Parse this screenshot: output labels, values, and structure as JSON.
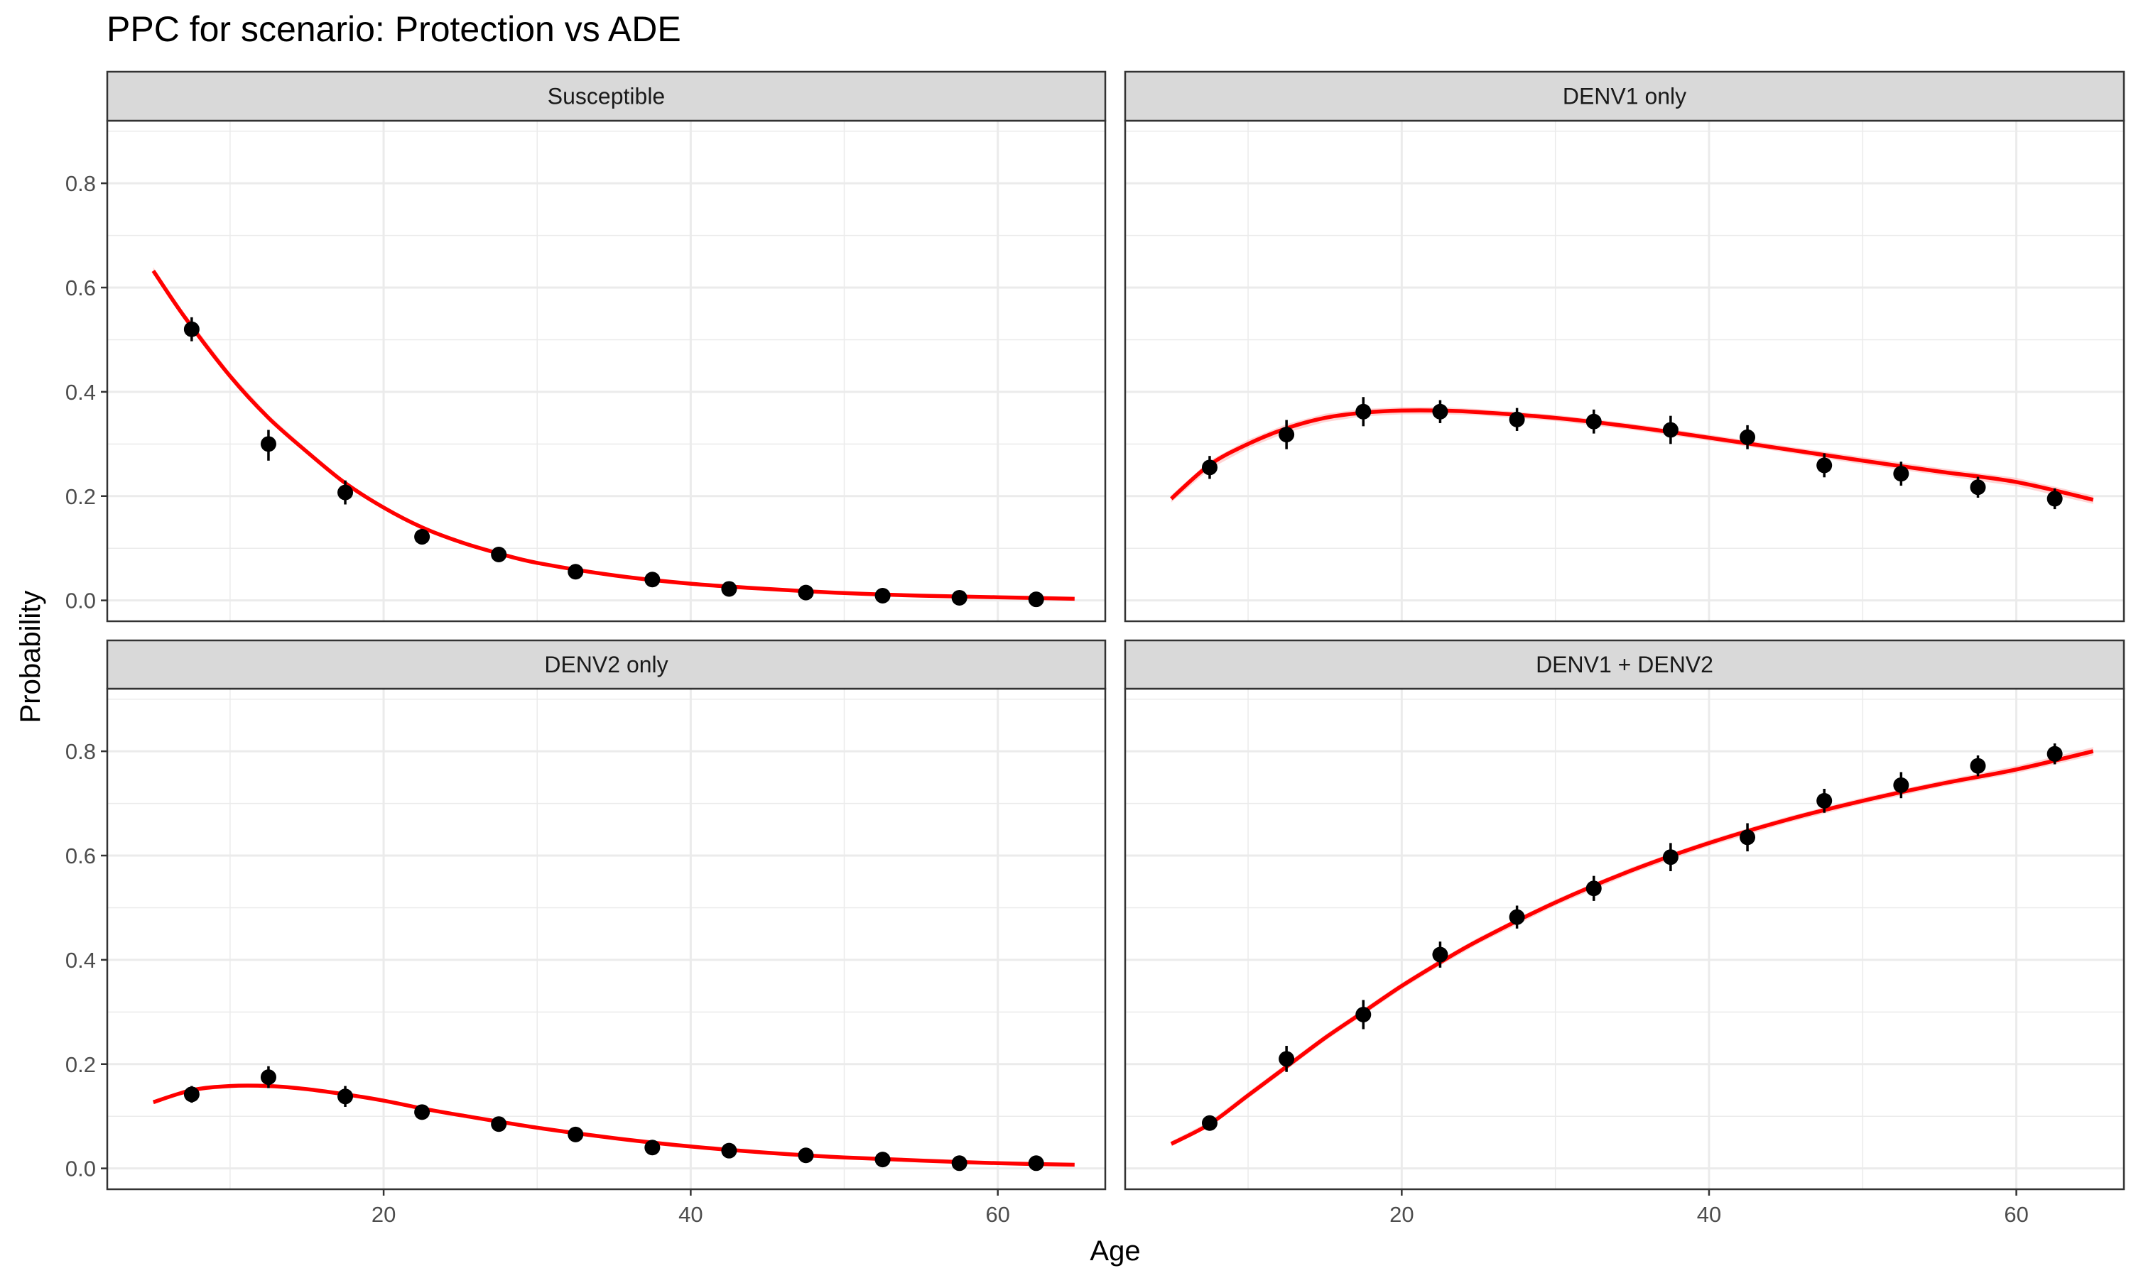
{
  "title": "PPC for scenario: Protection vs ADE",
  "colors": {
    "fit_line": "#ff0000",
    "ribbon": "#ffb3b3",
    "points": "#000000",
    "strip_bg": "#d9d9d9",
    "grid": "#ebebeb"
  },
  "chart_data": {
    "type": "scatter",
    "layout": "facet-grid 2x2",
    "xlabel": "Age",
    "ylabel": "Probability",
    "xlim": [
      2,
      67
    ],
    "ylim": [
      -0.04,
      0.92
    ],
    "x_ticks": [
      20,
      40,
      60
    ],
    "y_ticks": [
      0.0,
      0.2,
      0.4,
      0.6,
      0.8
    ],
    "x_tick_labels": [
      "20",
      "40",
      "60"
    ],
    "y_tick_labels": [
      "0.0",
      "0.2",
      "0.4",
      "0.6",
      "0.8"
    ],
    "grid": true,
    "panels": [
      {
        "label": "Susceptible",
        "observed": {
          "x": [
            7.5,
            12.5,
            17.5,
            22.5,
            27.5,
            32.5,
            37.5,
            42.5,
            47.5,
            52.5,
            57.5,
            62.5
          ],
          "y": [
            0.52,
            0.3,
            0.207,
            0.122,
            0.088,
            0.055,
            0.04,
            0.022,
            0.015,
            0.009,
            0.005,
            0.002
          ],
          "lower": [
            0.497,
            0.268,
            0.184,
            0.107,
            0.079,
            0.049,
            0.033,
            0.017,
            0.011,
            0.006,
            0.003,
            0.0
          ],
          "upper": [
            0.543,
            0.327,
            0.23,
            0.137,
            0.097,
            0.061,
            0.047,
            0.027,
            0.019,
            0.012,
            0.007,
            0.004
          ]
        },
        "fit": {
          "x": [
            5,
            7,
            10,
            12.5,
            15,
            17.5,
            20,
            22.5,
            25,
            27.5,
            30,
            35,
            40,
            45,
            50,
            55,
            60,
            65
          ],
          "y": [
            0.632,
            0.545,
            0.43,
            0.35,
            0.285,
            0.225,
            0.178,
            0.14,
            0.112,
            0.09,
            0.072,
            0.048,
            0.032,
            0.022,
            0.014,
            0.009,
            0.006,
            0.003
          ],
          "lower": [
            0.625,
            0.538,
            0.424,
            0.344,
            0.28,
            0.221,
            0.175,
            0.138,
            0.11,
            0.088,
            0.071,
            0.047,
            0.031,
            0.021,
            0.013,
            0.008,
            0.005,
            0.002
          ],
          "upper": [
            0.639,
            0.552,
            0.436,
            0.356,
            0.29,
            0.229,
            0.181,
            0.142,
            0.114,
            0.092,
            0.073,
            0.049,
            0.033,
            0.023,
            0.015,
            0.01,
            0.007,
            0.004
          ]
        }
      },
      {
        "label": "DENV1 only",
        "observed": {
          "x": [
            7.5,
            12.5,
            17.5,
            22.5,
            27.5,
            32.5,
            37.5,
            42.5,
            47.5,
            52.5,
            57.5,
            62.5
          ],
          "y": [
            0.255,
            0.318,
            0.362,
            0.362,
            0.347,
            0.343,
            0.327,
            0.313,
            0.259,
            0.243,
            0.217,
            0.195
          ],
          "lower": [
            0.233,
            0.29,
            0.334,
            0.34,
            0.325,
            0.32,
            0.3,
            0.29,
            0.236,
            0.22,
            0.197,
            0.175
          ],
          "upper": [
            0.277,
            0.346,
            0.39,
            0.384,
            0.369,
            0.366,
            0.354,
            0.336,
            0.282,
            0.266,
            0.237,
            0.215
          ]
        },
        "fit": {
          "x": [
            5,
            7.5,
            10,
            12.5,
            15,
            17.5,
            20,
            22.5,
            25,
            30,
            35,
            40,
            45,
            50,
            55,
            60,
            65
          ],
          "y": [
            0.195,
            0.26,
            0.3,
            0.33,
            0.35,
            0.36,
            0.364,
            0.364,
            0.361,
            0.35,
            0.333,
            0.312,
            0.29,
            0.268,
            0.247,
            0.227,
            0.193
          ],
          "lower": [
            0.188,
            0.252,
            0.292,
            0.322,
            0.342,
            0.353,
            0.357,
            0.357,
            0.355,
            0.344,
            0.327,
            0.306,
            0.284,
            0.261,
            0.24,
            0.219,
            0.185
          ],
          "upper": [
            0.202,
            0.268,
            0.308,
            0.338,
            0.358,
            0.367,
            0.371,
            0.371,
            0.367,
            0.356,
            0.339,
            0.318,
            0.296,
            0.275,
            0.254,
            0.235,
            0.201
          ]
        }
      },
      {
        "label": "DENV2 only",
        "observed": {
          "x": [
            7.5,
            12.5,
            17.5,
            22.5,
            27.5,
            32.5,
            37.5,
            42.5,
            47.5,
            52.5,
            57.5,
            62.5
          ],
          "y": [
            0.142,
            0.175,
            0.138,
            0.108,
            0.085,
            0.065,
            0.04,
            0.034,
            0.025,
            0.017,
            0.01,
            0.01
          ],
          "lower": [
            0.126,
            0.154,
            0.118,
            0.094,
            0.077,
            0.058,
            0.034,
            0.028,
            0.02,
            0.013,
            0.007,
            0.007
          ],
          "upper": [
            0.158,
            0.196,
            0.158,
            0.122,
            0.093,
            0.072,
            0.046,
            0.04,
            0.03,
            0.021,
            0.013,
            0.013
          ]
        },
        "fit": {
          "x": [
            5,
            7.5,
            10,
            12.5,
            15,
            17.5,
            20,
            22.5,
            25,
            30,
            35,
            40,
            45,
            50,
            55,
            60,
            65
          ],
          "y": [
            0.127,
            0.15,
            0.158,
            0.158,
            0.152,
            0.142,
            0.13,
            0.115,
            0.102,
            0.078,
            0.058,
            0.042,
            0.03,
            0.021,
            0.015,
            0.01,
            0.007
          ],
          "lower": [
            0.124,
            0.147,
            0.155,
            0.155,
            0.149,
            0.139,
            0.127,
            0.112,
            0.099,
            0.076,
            0.056,
            0.041,
            0.029,
            0.02,
            0.014,
            0.009,
            0.006
          ],
          "upper": [
            0.13,
            0.153,
            0.161,
            0.161,
            0.155,
            0.145,
            0.133,
            0.118,
            0.105,
            0.08,
            0.06,
            0.043,
            0.031,
            0.022,
            0.016,
            0.011,
            0.008
          ]
        }
      },
      {
        "label": "DENV1 + DENV2",
        "observed": {
          "x": [
            7.5,
            12.5,
            17.5,
            22.5,
            27.5,
            32.5,
            37.5,
            42.5,
            47.5,
            52.5,
            57.5,
            62.5
          ],
          "y": [
            0.087,
            0.21,
            0.295,
            0.41,
            0.482,
            0.537,
            0.597,
            0.635,
            0.705,
            0.735,
            0.772,
            0.795
          ],
          "lower": [
            0.075,
            0.185,
            0.267,
            0.385,
            0.46,
            0.513,
            0.57,
            0.608,
            0.682,
            0.71,
            0.752,
            0.775
          ],
          "upper": [
            0.099,
            0.235,
            0.323,
            0.435,
            0.504,
            0.561,
            0.624,
            0.662,
            0.728,
            0.76,
            0.792,
            0.815
          ]
        },
        "fit": {
          "x": [
            5,
            7.5,
            10,
            12.5,
            15,
            17.5,
            20,
            22.5,
            25,
            30,
            35,
            40,
            45,
            50,
            55,
            60,
            65
          ],
          "y": [
            0.047,
            0.085,
            0.14,
            0.195,
            0.25,
            0.3,
            0.35,
            0.395,
            0.437,
            0.51,
            0.572,
            0.624,
            0.668,
            0.705,
            0.737,
            0.765,
            0.8
          ],
          "lower": [
            0.042,
            0.08,
            0.134,
            0.189,
            0.244,
            0.294,
            0.344,
            0.389,
            0.431,
            0.504,
            0.566,
            0.618,
            0.662,
            0.699,
            0.731,
            0.758,
            0.792
          ],
          "upper": [
            0.052,
            0.09,
            0.146,
            0.201,
            0.256,
            0.306,
            0.356,
            0.401,
            0.443,
            0.516,
            0.578,
            0.63,
            0.674,
            0.711,
            0.743,
            0.772,
            0.808
          ]
        }
      }
    ]
  }
}
